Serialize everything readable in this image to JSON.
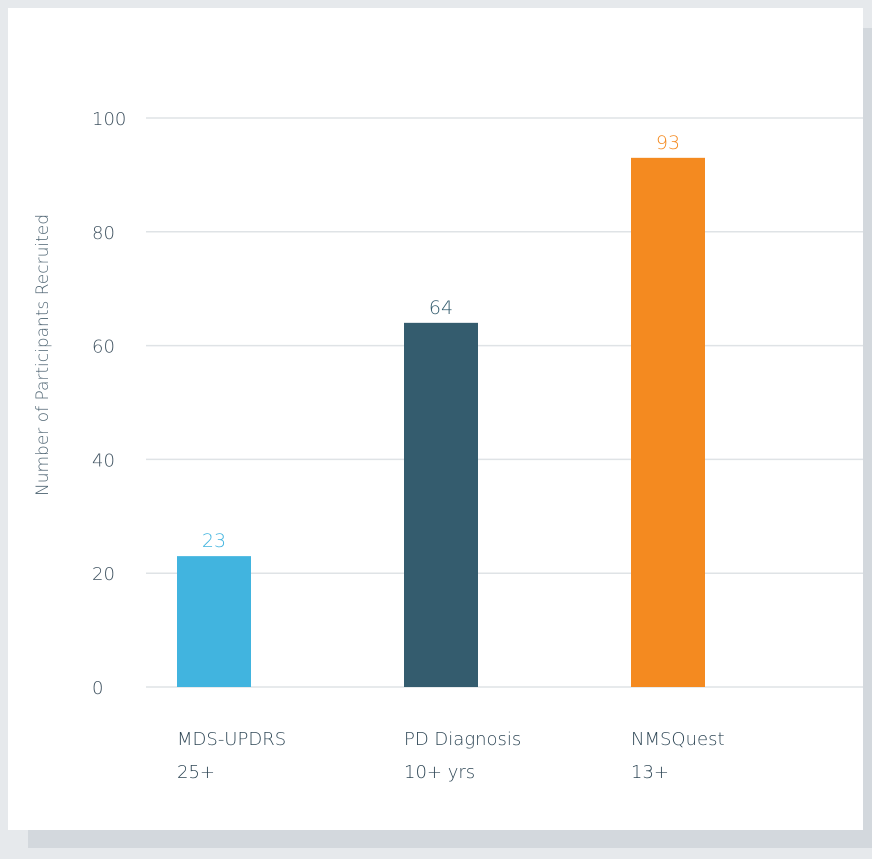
{
  "chart_data": {
    "type": "bar",
    "categories": [
      [
        "MDS-UPDRS",
        "25+"
      ],
      [
        "PD Diagnosis",
        "10+ yrs"
      ],
      [
        "NMSQuest",
        "13+"
      ]
    ],
    "values": [
      23,
      64,
      93
    ],
    "value_labels": [
      "23",
      "64",
      "93"
    ],
    "colors": [
      "#41b4df",
      "#345c6e",
      "#f48a20"
    ],
    "title": "",
    "xlabel": "",
    "ylabel": "Number of Participants Recruited",
    "ylim": [
      0,
      100
    ],
    "yticks": [
      0,
      20,
      40,
      60,
      80,
      100
    ],
    "grid": true,
    "legend": "none"
  },
  "colors": {
    "background": "#e6e9ec",
    "card": "#ffffff",
    "gridline": "#dfe3e6",
    "axis_text": "#3f5260"
  }
}
